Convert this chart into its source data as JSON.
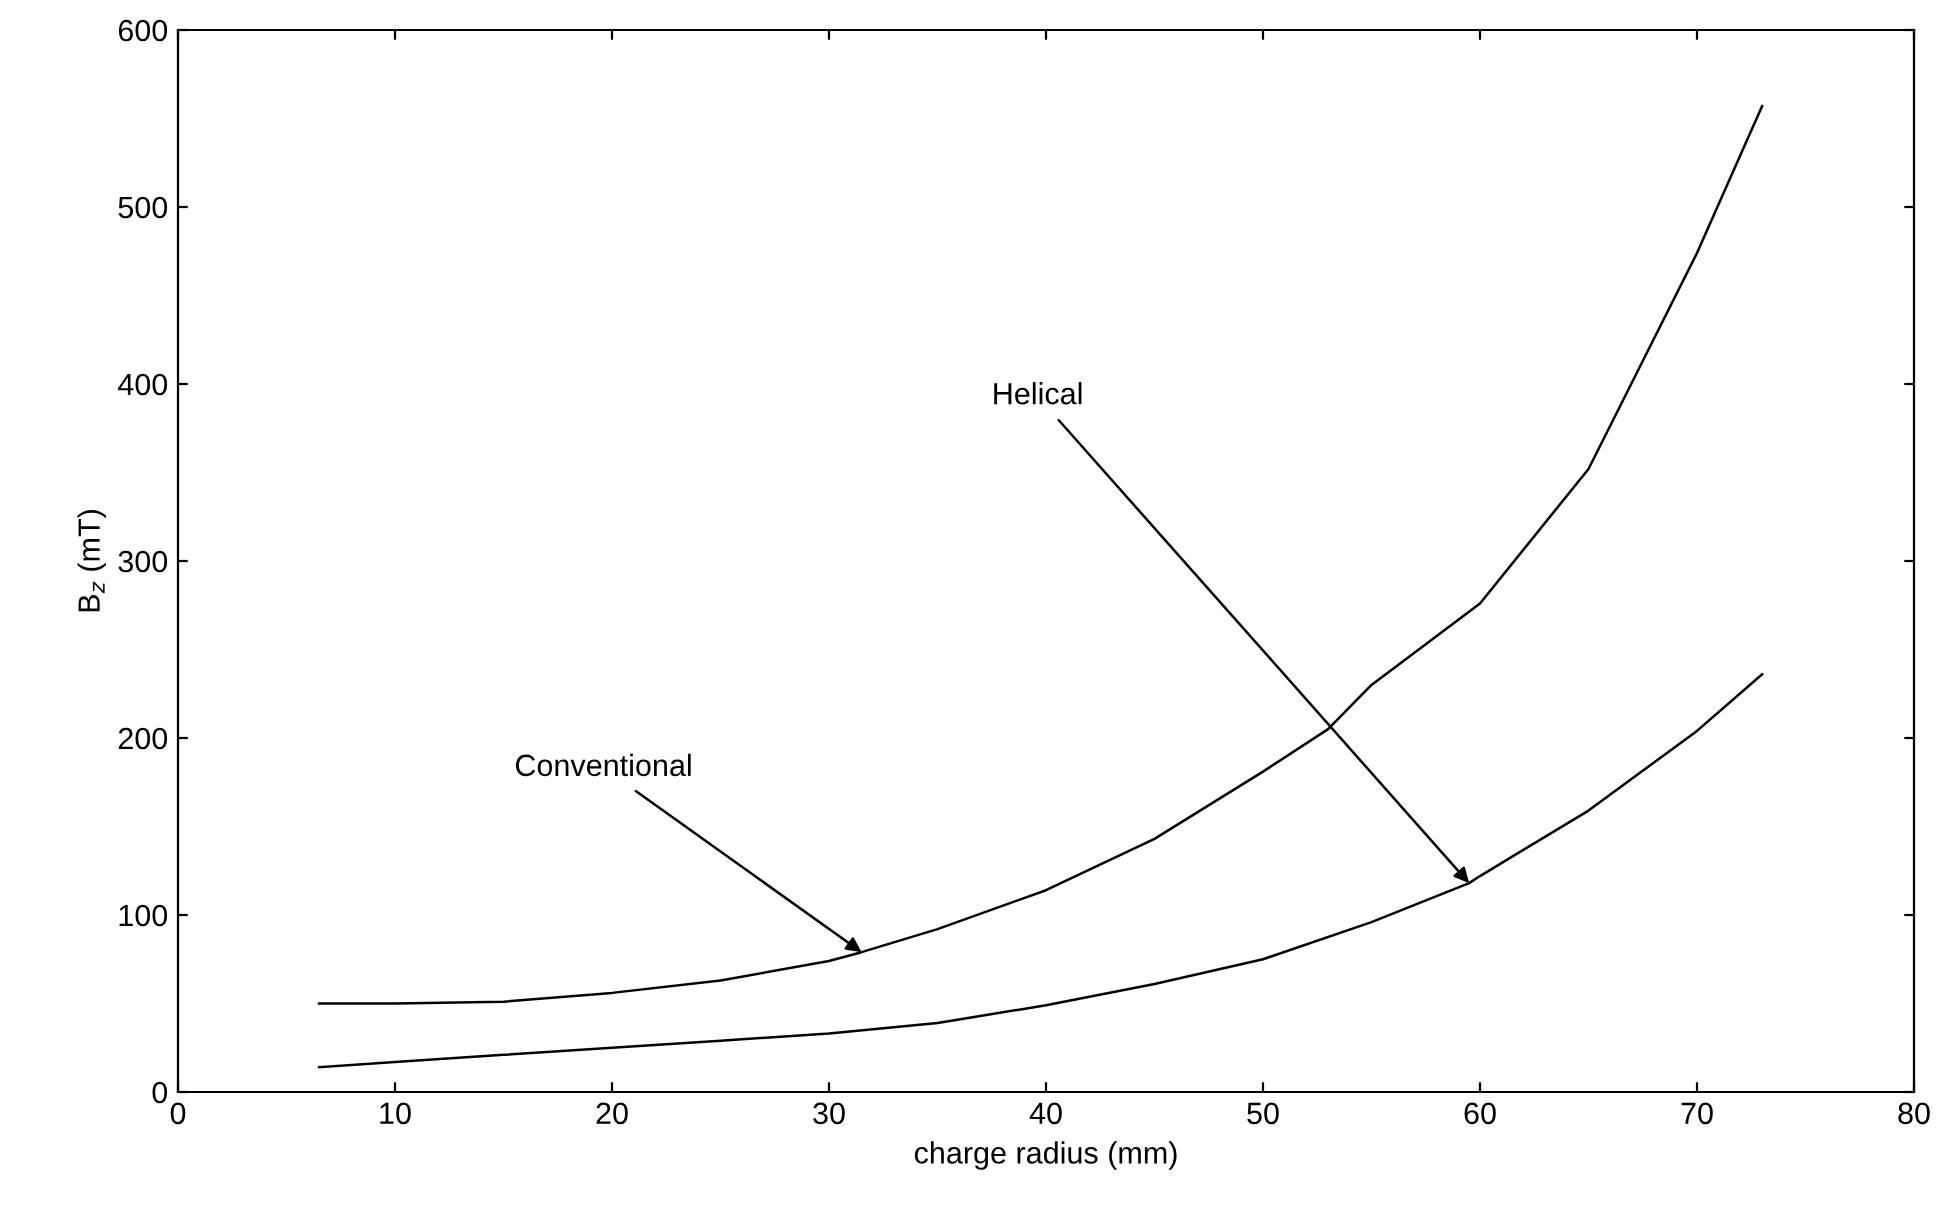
{
  "chart_data": {
    "type": "line",
    "xlabel": "charge radius (mm)",
    "ylabel": "B$_{z}$ (mT)",
    "xlim": [
      0,
      80
    ],
    "xticks": [
      0,
      10,
      20,
      30,
      40,
      50,
      60,
      70,
      80
    ],
    "ylim": [
      0,
      600
    ],
    "yticks": [
      0,
      100,
      200,
      300,
      400,
      500,
      600
    ],
    "grid": false,
    "legend": false,
    "line_style": "solid",
    "marker": "none",
    "series": [
      {
        "color": "#000000",
        "x": [
          6.5,
          10,
          15,
          20,
          25,
          30,
          31.5,
          35,
          40,
          45,
          50,
          53,
          55,
          60,
          65,
          67.5,
          70,
          73
        ],
        "values": [
          50,
          50,
          51,
          56,
          63,
          74,
          79,
          92,
          114,
          143,
          181,
          205,
          230,
          276,
          352,
          413,
          474,
          557
        ]
      },
      {
        "color": "#000000",
        "x": [
          6.5,
          10,
          15,
          20,
          25,
          30,
          35,
          40,
          45,
          50,
          55,
          59.5,
          60,
          65,
          70,
          73
        ],
        "values": [
          14,
          17,
          21,
          25,
          29,
          33,
          39,
          49,
          61,
          75,
          96,
          118,
          122,
          159,
          204,
          236
        ]
      }
    ],
    "annotations": [
      {
        "text": "Conventional",
        "x": 31.5,
        "y": 79
      },
      {
        "text": "Helical",
        "x": 59.5,
        "y": 118
      }
    ]
  }
}
